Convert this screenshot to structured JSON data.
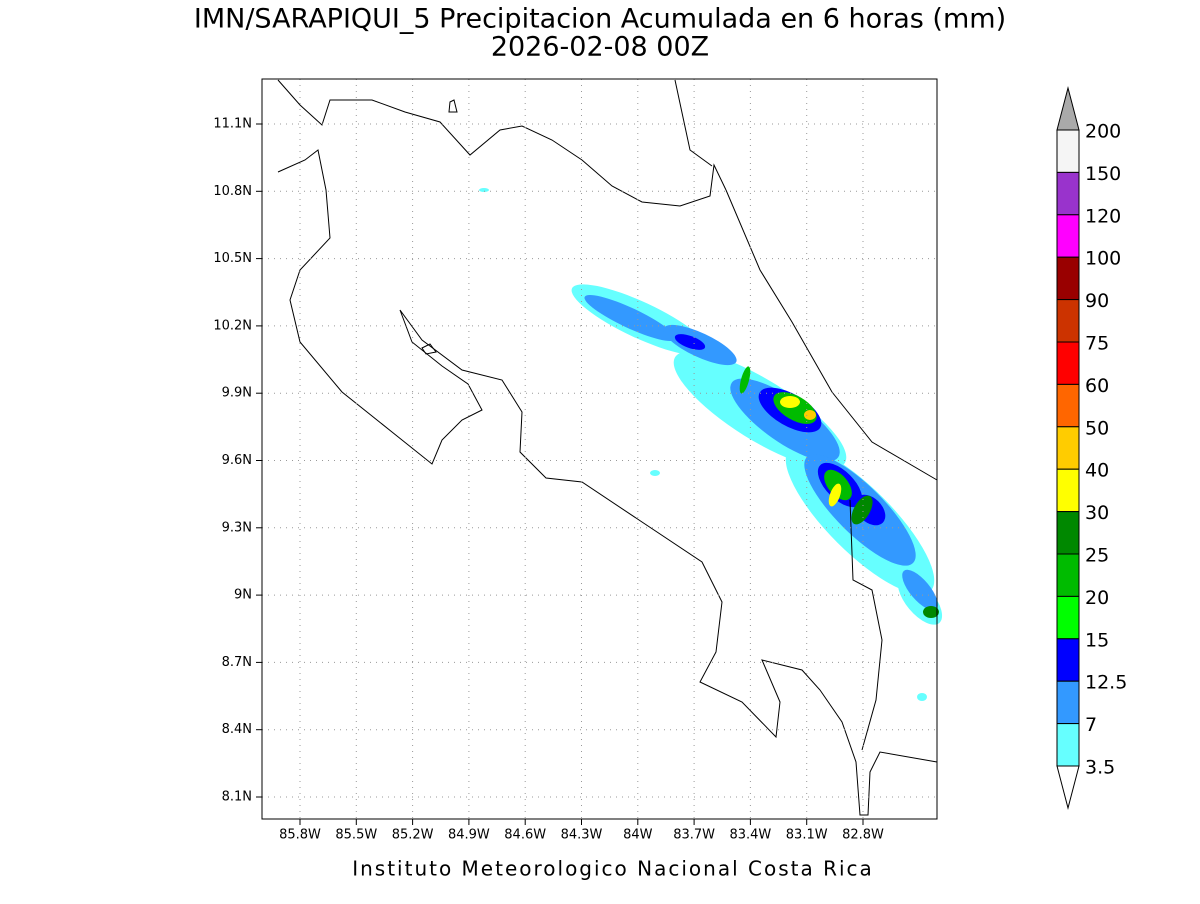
{
  "header": {
    "title": "IMN/SARAPIQUI_5 Precipitacion Acumulada en 6 horas (mm)",
    "subtitle": "2026-02-08 00Z"
  },
  "map": {
    "lon_ticks": [
      "85.8W",
      "85.5W",
      "85.2W",
      "84.9W",
      "84.6W",
      "84.3W",
      "84W",
      "83.7W",
      "83.4W",
      "83.1W",
      "82.8W"
    ],
    "lat_ticks": [
      "11.1N",
      "10.8N",
      "10.5N",
      "10.2N",
      "9.9N",
      "9.6N",
      "9.3N",
      "9N",
      "8.7N",
      "8.4N",
      "8.1N"
    ]
  },
  "colorbar": {
    "labels": [
      "200",
      "150",
      "120",
      "100",
      "90",
      "75",
      "60",
      "50",
      "40",
      "30",
      "25",
      "20",
      "15",
      "12.5",
      "7",
      "3.5"
    ],
    "colors": [
      "#f5f5f5",
      "#9933cc",
      "#ff00ff",
      "#990000",
      "#cc3300",
      "#ff0000",
      "#ff6600",
      "#ffcc00",
      "#ffff00",
      "#008800",
      "#00bb00",
      "#00ff00",
      "#0000ff",
      "#3399ff",
      "#66ffff"
    ],
    "over_color": "#aaaaaa",
    "under_color": "#ffffff"
  },
  "footer": "Instituto Meteorologico Nacional Costa Rica"
}
